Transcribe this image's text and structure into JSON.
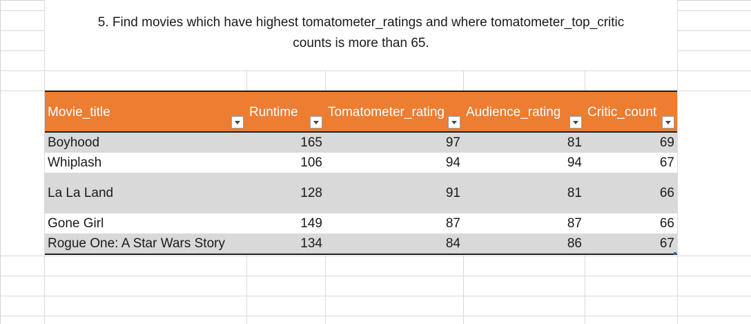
{
  "note": {
    "line1": "5. Find movies which have highest tomatometer_ratings and where tomatometer_top_critic",
    "line2": "counts is more than 65."
  },
  "table": {
    "headers": [
      "Movie_title",
      "Runtime",
      "Tomatometer_rating",
      "Audience_rating",
      "Critic_count"
    ],
    "rows": [
      [
        "Boyhood",
        "165",
        "97",
        "81",
        "69"
      ],
      [
        "Whiplash",
        "106",
        "94",
        "94",
        "67"
      ],
      [
        "La La Land",
        "128",
        "91",
        "81",
        "66"
      ],
      [
        "Gone Girl",
        "149",
        "87",
        "87",
        "66"
      ],
      [
        "Rogue One: A Star Wars Story",
        "134",
        "84",
        "86",
        "67"
      ]
    ]
  },
  "colors": {
    "header_fill": "#ed7d31",
    "banded_row": "#d9d9d9",
    "header_text": "#ffffff"
  }
}
